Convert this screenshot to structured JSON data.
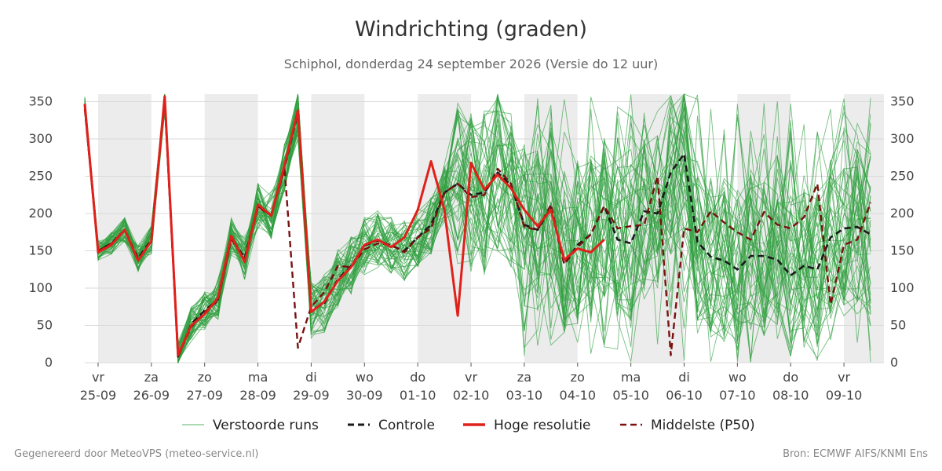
{
  "title": "Windrichting (graden)",
  "subtitle": "Schiphol, donderdag 24 september 2026 (Versie do 12 uur)",
  "footer_left": "Gegenereerd door MeteoVPS (meteo-service.nl)",
  "footer_right": "Bron: ECMWF AIFS/KNMI Ens",
  "colors": {
    "members": "#2e9e3e",
    "control": "#1a1a1a",
    "hires": "#e0201a",
    "median": "#7a1010",
    "weekend_band": "#ececec",
    "grid": "#d9d9d9"
  },
  "chart_data": {
    "type": "line",
    "title": "Windrichting (graden)",
    "xlabel": "",
    "ylabel": "",
    "ylim": [
      0,
      360
    ],
    "xlim": [
      0,
      15
    ],
    "y_ticks": [
      0,
      50,
      100,
      150,
      200,
      250,
      300,
      350
    ],
    "x_ticks": [
      {
        "x": 0.25,
        "day": "vr",
        "date": "25-09"
      },
      {
        "x": 1.25,
        "day": "za",
        "date": "26-09"
      },
      {
        "x": 2.25,
        "day": "zo",
        "date": "27-09"
      },
      {
        "x": 3.25,
        "day": "ma",
        "date": "28-09"
      },
      {
        "x": 4.25,
        "day": "di",
        "date": "29-09"
      },
      {
        "x": 5.25,
        "day": "wo",
        "date": "30-09"
      },
      {
        "x": 6.25,
        "day": "do",
        "date": "01-10"
      },
      {
        "x": 7.25,
        "day": "vr",
        "date": "02-10"
      },
      {
        "x": 8.25,
        "day": "za",
        "date": "03-10"
      },
      {
        "x": 9.25,
        "day": "zo",
        "date": "04-10"
      },
      {
        "x": 10.25,
        "day": "ma",
        "date": "05-10"
      },
      {
        "x": 11.25,
        "day": "di",
        "date": "06-10"
      },
      {
        "x": 12.25,
        "day": "wo",
        "date": "07-10"
      },
      {
        "x": 13.25,
        "day": "do",
        "date": "08-10"
      },
      {
        "x": 14.25,
        "day": "vr",
        "date": "09-10"
      }
    ],
    "shaded_bands": [
      [
        0.25,
        1.25
      ],
      [
        2.25,
        3.25
      ],
      [
        4.25,
        5.25
      ],
      [
        6.25,
        7.25
      ],
      [
        8.25,
        9.25
      ],
      [
        10.25,
        11.25
      ],
      [
        12.25,
        13.25
      ],
      [
        14.25,
        15.0
      ]
    ],
    "grid": true,
    "legend_position": "bottom",
    "legend": [
      {
        "key": "members",
        "label": "Verstoorde runs"
      },
      {
        "key": "control",
        "label": "Controle"
      },
      {
        "key": "hires",
        "label": "Hoge resolutie"
      },
      {
        "key": "median",
        "label": "Middelste (P50)"
      }
    ],
    "series": [
      {
        "name": "Hoge resolutie",
        "key": "hires",
        "x": [
          0,
          0.25,
          0.5,
          0.75,
          1.0,
          1.25,
          1.5,
          1.75,
          2.0,
          2.25,
          2.5,
          2.75,
          3.0,
          3.25,
          3.5,
          3.75,
          4.0,
          4.25,
          4.5,
          4.75,
          5.0,
          5.25,
          5.5,
          5.75,
          6.0,
          6.25,
          6.5,
          6.75,
          7.0,
          7.25,
          7.5,
          7.75,
          8.0,
          8.25,
          8.5,
          8.75,
          9.0,
          9.25,
          9.5,
          9.75
        ],
        "y": [
          347,
          148,
          158,
          178,
          137,
          163,
          357,
          10,
          50,
          65,
          87,
          170,
          135,
          212,
          197,
          265,
          338,
          68,
          82,
          110,
          128,
          158,
          165,
          155,
          168,
          205,
          270,
          205,
          63,
          268,
          232,
          252,
          234,
          205,
          183,
          205,
          138,
          153,
          148,
          165
        ]
      },
      {
        "name": "Controle",
        "key": "control",
        "x": [
          0,
          0.25,
          0.5,
          0.75,
          1.0,
          1.25,
          1.5,
          1.75,
          2.0,
          2.25,
          2.5,
          2.75,
          3.0,
          3.25,
          3.5,
          3.75,
          4.0,
          4.25,
          4.5,
          4.75,
          5.0,
          5.25,
          5.5,
          5.75,
          6.0,
          6.25,
          6.5,
          6.75,
          7.0,
          7.25,
          7.5,
          7.75,
          8.0,
          8.25,
          8.5,
          8.75,
          9.0,
          9.25,
          9.5,
          9.75,
          10.0,
          10.25,
          10.5,
          10.75,
          11.0,
          11.25,
          11.5,
          11.75,
          12.0,
          12.25,
          12.5,
          12.75,
          13.0,
          13.25,
          13.5,
          13.75,
          14.0,
          14.25,
          14.5,
          14.75
        ],
        "y": [
          345,
          150,
          160,
          178,
          140,
          165,
          355,
          8,
          52,
          70,
          85,
          168,
          140,
          210,
          198,
          262,
          335,
          70,
          80,
          112,
          130,
          157,
          164,
          157,
          150,
          168,
          185,
          228,
          240,
          225,
          228,
          255,
          238,
          185,
          178,
          208,
          132,
          158,
          172,
          210,
          165,
          160,
          203,
          200,
          255,
          280,
          162,
          142,
          137,
          125,
          143,
          143,
          138,
          117,
          130,
          125,
          168,
          180,
          182,
          172
        ]
      },
      {
        "name": "Middelste (P50)",
        "key": "median",
        "x": [
          0,
          0.25,
          0.5,
          0.75,
          1.0,
          1.25,
          1.5,
          1.75,
          2.0,
          2.25,
          2.5,
          2.75,
          3.0,
          3.25,
          3.5,
          3.75,
          4.0,
          4.25,
          4.5,
          4.75,
          5.0,
          5.25,
          5.5,
          5.75,
          6.0,
          6.25,
          6.5,
          6.75,
          7.0,
          7.25,
          7.5,
          7.75,
          8.0,
          8.25,
          8.5,
          8.75,
          9.0,
          9.25,
          9.5,
          9.75,
          10.0,
          10.25,
          10.5,
          10.75,
          11.0,
          11.25,
          11.5,
          11.75,
          12.0,
          12.25,
          12.5,
          12.75,
          13.0,
          13.25,
          13.5,
          13.75,
          14.0,
          14.25,
          14.5,
          14.75
        ],
        "y": [
          340,
          150,
          160,
          178,
          138,
          163,
          353,
          8,
          48,
          68,
          83,
          166,
          138,
          208,
          198,
          260,
          20,
          75,
          95,
          130,
          128,
          152,
          160,
          158,
          148,
          168,
          180,
          228,
          240,
          222,
          225,
          260,
          240,
          182,
          178,
          212,
          132,
          155,
          172,
          210,
          180,
          183,
          185,
          250,
          10,
          180,
          175,
          203,
          188,
          175,
          165,
          202,
          185,
          180,
          195,
          240,
          78,
          158,
          165,
          215
        ]
      }
    ]
  }
}
